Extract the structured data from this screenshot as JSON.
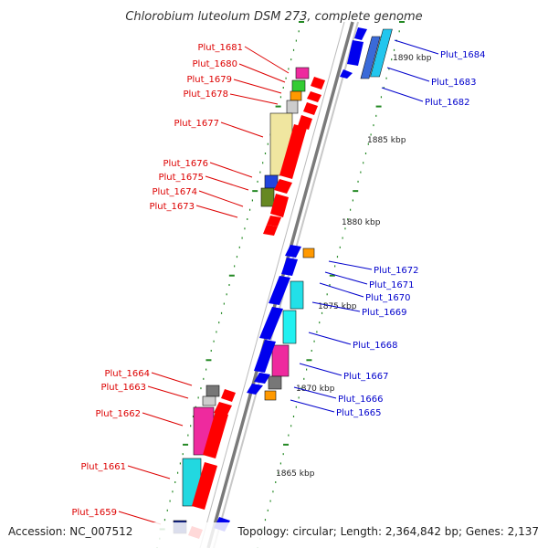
{
  "title": "Chlorobium luteolum DSM 273, complete genome",
  "footer": {
    "accession": "Accession: NC_007512",
    "topology": "Topology: circular; Length: 2,364,842 bp; Genes: 2,137"
  },
  "ruler_labels": [
    "1890 kbp",
    "1885 kbp",
    "1880 kbp",
    "1875 kbp",
    "1870 kbp",
    "1865 kbp"
  ],
  "colors": {
    "left_label": "#dd0000",
    "right_label": "#0000cc",
    "backbone": "#7f7f7f",
    "forward_strand": "#ff0000",
    "reverse_strand": "#0000ee",
    "ticks": "#228822"
  },
  "genes_left": [
    "Plut_1681",
    "Plut_1680",
    "Plut_1679",
    "Plut_1678",
    "Plut_1677",
    "Plut_1676",
    "Plut_1675",
    "Plut_1674",
    "Plut_1673",
    "Plut_1664",
    "Plut_1663",
    "Plut_1662",
    "Plut_1661",
    "Plut_1659"
  ],
  "genes_right": [
    "Plut_1684",
    "Plut_1683",
    "Plut_1682",
    "Plut_1672",
    "Plut_1671",
    "Plut_1670",
    "Plut_1669",
    "Plut_1668",
    "Plut_1667",
    "Plut_1666",
    "Plut_1665"
  ]
}
